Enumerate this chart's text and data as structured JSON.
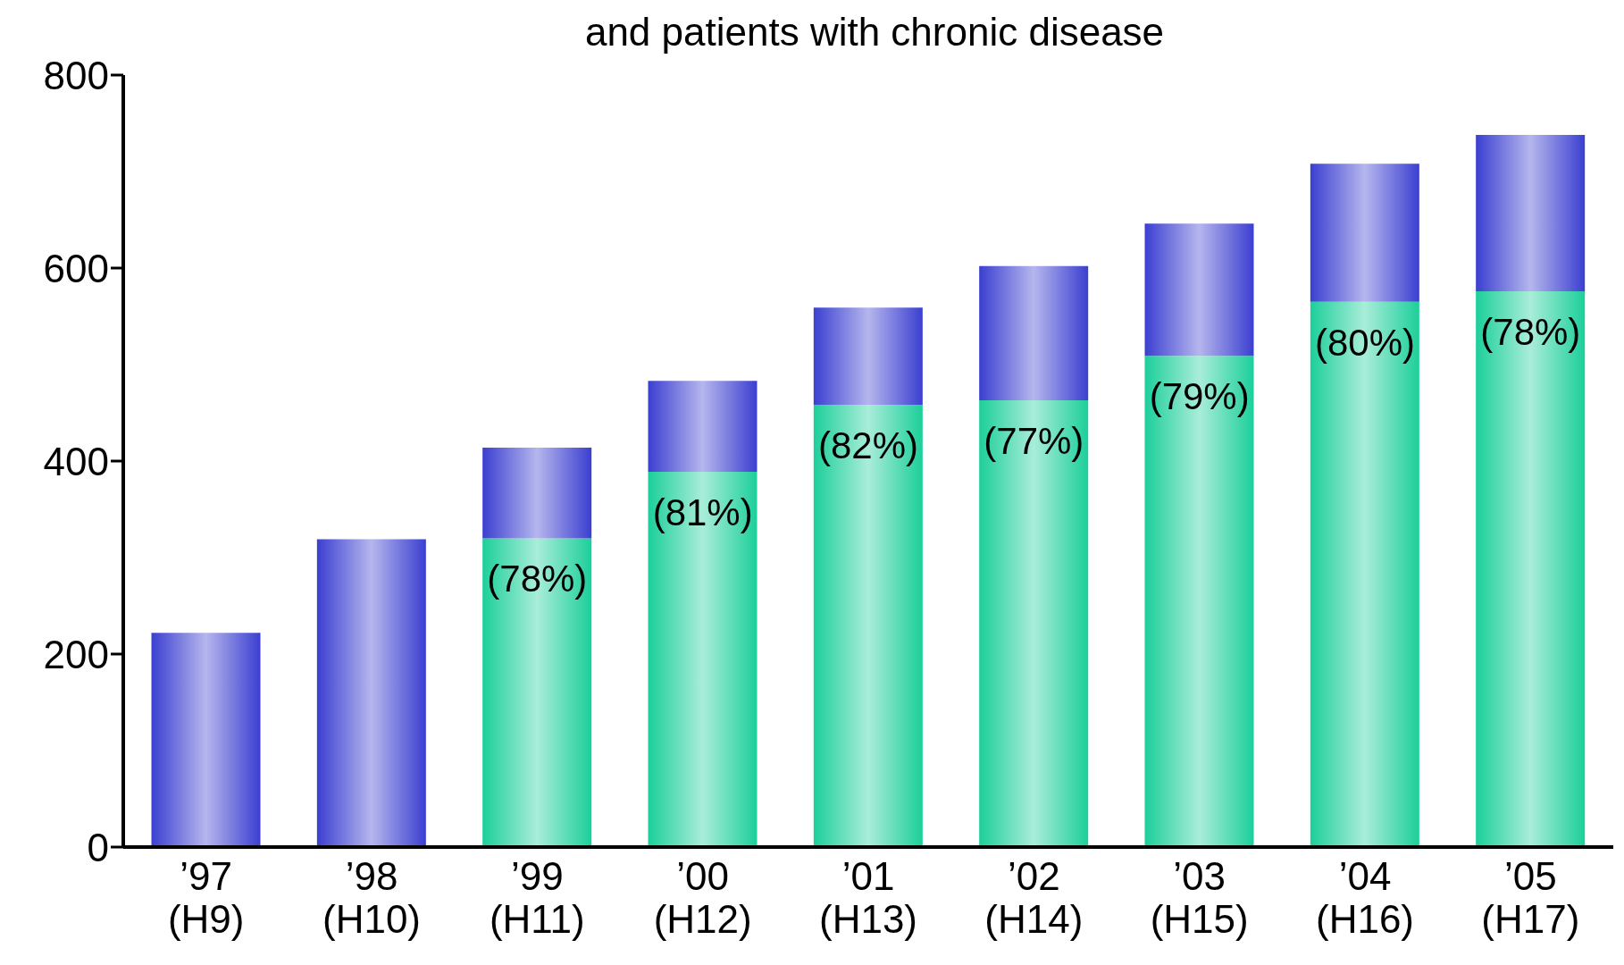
{
  "chart_data": {
    "type": "bar",
    "title": "and patients with chronic disease",
    "stacked": true,
    "categories": [
      "’97\n(H9)",
      "’98\n(H10)",
      "’99\n(H11)",
      "’00\n(H12)",
      "’01\n(H13)",
      "’02\n(H14)",
      "’03\n(H15)",
      "’04\n(H16)",
      "’05\n(H17)"
    ],
    "series": [
      {
        "color": "#1ccf9a",
        "values": [
          null,
          null,
          320,
          389,
          458,
          463,
          509,
          565,
          576
        ]
      },
      {
        "color": "#3b3fd0",
        "values": [
          222,
          319,
          94,
          94,
          101,
          139,
          137,
          143,
          162
        ]
      }
    ],
    "annotations": [
      {
        "text": "(78%)",
        "x": "’99\n(H11)",
        "y": 320
      },
      {
        "text": "(81%)",
        "x": "’00\n(H12)",
        "y": 389
      },
      {
        "text": "(82%)",
        "x": "’01\n(H13)",
        "y": 458
      },
      {
        "text": "(77%)",
        "x": "’02\n(H14)",
        "y": 463
      },
      {
        "text": "(79%)",
        "x": "’03\n(H15)",
        "y": 509
      },
      {
        "text": "(80%)",
        "x": "’04\n(H16)",
        "y": 565
      },
      {
        "text": "(78%)",
        "x": "’05\n(H17)",
        "y": 576
      }
    ],
    "ylim": [
      0,
      800
    ],
    "yticks": [
      0,
      200,
      400,
      600,
      800
    ],
    "grid": false,
    "legend": false
  }
}
